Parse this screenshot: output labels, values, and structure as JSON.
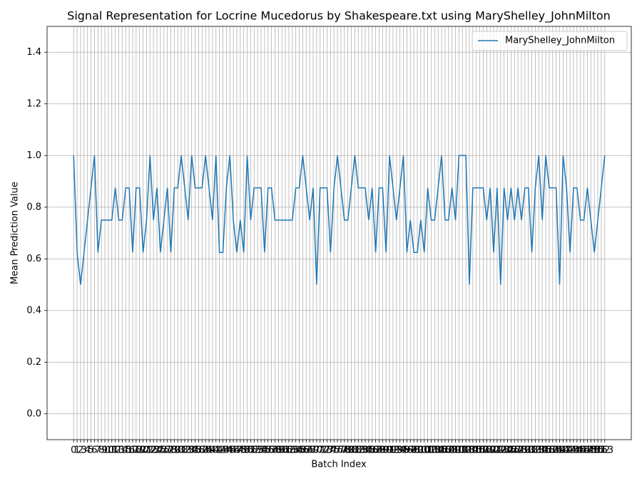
{
  "chart_data": {
    "type": "line",
    "title": "Signal Representation for Locrine Mucedorus by Shakespeare.txt using MaryShelley_JohnMilton",
    "x_label": "Batch Index",
    "y_label": "Mean Prediction Value",
    "x": [
      0,
      1,
      2,
      3,
      4,
      5,
      6,
      7,
      8,
      9,
      10,
      11,
      12,
      13,
      14,
      15,
      16,
      17,
      18,
      19,
      20,
      21,
      22,
      23,
      24,
      25,
      26,
      27,
      28,
      29,
      30,
      31,
      32,
      33,
      34,
      35,
      36,
      37,
      38,
      39,
      40,
      41,
      42,
      43,
      44,
      45,
      46,
      47,
      48,
      49,
      50,
      51,
      52,
      53,
      54,
      55,
      56,
      57,
      58,
      59,
      60,
      61,
      62,
      63,
      64,
      65,
      66,
      67,
      68,
      69,
      70,
      71,
      72,
      73,
      74,
      75,
      76,
      77,
      78,
      79,
      80,
      81,
      82,
      83,
      84,
      85,
      86,
      87,
      88,
      89,
      90,
      91,
      92,
      93,
      94,
      95,
      96,
      97,
      98,
      99,
      100,
      101,
      102,
      103,
      104,
      105,
      106,
      107,
      108,
      109,
      110,
      111,
      112,
      113,
      114,
      115,
      116,
      117,
      118,
      119,
      120,
      121,
      122,
      123,
      124,
      125,
      126,
      127,
      128,
      129,
      130,
      131,
      132,
      133,
      134,
      135,
      136,
      137,
      138,
      139,
      140,
      141,
      142,
      143,
      144,
      145,
      146,
      147,
      148,
      149,
      150,
      151,
      152,
      153
    ],
    "series": [
      {
        "name": "MaryShelley_JohnMilton",
        "color": "#1f77b4",
        "values": [
          1,
          0.625,
          0.5,
          0.625,
          0.75,
          0.875,
          1,
          0.625,
          0.75,
          0.75,
          0.75,
          0.75,
          0.875,
          0.75,
          0.75,
          0.875,
          0.875,
          0.625,
          0.875,
          0.875,
          0.625,
          0.75,
          1,
          0.75,
          0.875,
          0.625,
          0.75,
          0.875,
          0.625,
          0.875,
          0.875,
          1,
          0.875,
          0.75,
          1,
          0.875,
          0.875,
          0.875,
          1,
          0.875,
          0.75,
          1,
          0.625,
          0.625,
          0.875,
          1,
          0.75,
          0.625,
          0.75,
          0.625,
          1,
          0.75,
          0.875,
          0.875,
          0.875,
          0.625,
          0.875,
          0.875,
          0.75,
          0.75,
          0.75,
          0.75,
          0.75,
          0.75,
          0.875,
          0.875,
          1,
          0.875,
          0.75,
          0.875,
          0.5,
          0.875,
          0.875,
          0.875,
          0.625,
          0.875,
          1,
          0.875,
          0.75,
          0.75,
          0.875,
          1,
          0.875,
          0.875,
          0.875,
          0.75,
          0.875,
          0.625,
          0.875,
          0.875,
          0.625,
          1,
          0.875,
          0.75,
          0.875,
          1,
          0.625,
          0.75,
          0.625,
          0.625,
          0.75,
          0.625,
          0.875,
          0.75,
          0.75,
          0.875,
          1,
          0.75,
          0.75,
          0.875,
          0.75,
          1,
          1,
          1,
          0.5,
          0.875,
          0.875,
          0.875,
          0.875,
          0.75,
          0.875,
          0.625,
          0.875,
          0.5,
          0.875,
          0.75,
          0.875,
          0.75,
          0.875,
          0.75,
          0.875,
          0.875,
          0.625,
          0.875,
          1,
          0.75,
          1,
          0.875,
          0.875,
          0.875,
          0.5,
          1,
          0.875,
          0.625,
          0.875,
          0.875,
          0.75,
          0.75,
          0.875,
          0.75,
          0.625,
          0.75,
          0.875,
          1
        ]
      }
    ],
    "xlim": [
      -7.65,
      160.65
    ],
    "xticks": [
      0,
      1,
      2,
      3,
      4,
      5,
      6,
      7,
      8,
      9,
      10,
      11,
      12,
      13,
      14,
      15,
      16,
      17,
      18,
      19,
      20,
      21,
      22,
      23,
      24,
      25,
      26,
      27,
      28,
      29,
      30,
      31,
      32,
      33,
      34,
      35,
      36,
      37,
      38,
      39,
      40,
      41,
      42,
      43,
      44,
      45,
      46,
      47,
      48,
      49,
      50,
      51,
      52,
      53,
      54,
      55,
      56,
      57,
      58,
      59,
      60,
      61,
      62,
      63,
      64,
      65,
      66,
      67,
      68,
      69,
      70,
      71,
      72,
      73,
      74,
      75,
      76,
      77,
      78,
      79,
      80,
      81,
      82,
      83,
      84,
      85,
      86,
      87,
      88,
      89,
      90,
      91,
      92,
      93,
      94,
      95,
      96,
      97,
      98,
      99,
      100,
      101,
      102,
      103,
      104,
      105,
      106,
      107,
      108,
      109,
      110,
      111,
      112,
      113,
      114,
      115,
      116,
      117,
      118,
      119,
      120,
      121,
      122,
      123,
      124,
      125,
      126,
      127,
      128,
      129,
      130,
      131,
      132,
      133,
      134,
      135,
      136,
      137,
      138,
      139,
      140,
      141,
      142,
      143,
      144,
      145,
      146,
      147,
      148,
      149,
      150,
      151,
      152,
      153
    ],
    "ylim": [
      -0.1,
      1.5
    ],
    "yticks": [
      {
        "value": 0,
        "label": "0.0"
      },
      {
        "value": 0.2,
        "label": "0.2"
      },
      {
        "value": 0.4,
        "label": "0.4"
      },
      {
        "value": 0.6,
        "label": "0.6"
      },
      {
        "value": 0.8,
        "label": "0.8"
      },
      {
        "value": 1,
        "label": "1.0"
      },
      {
        "value": 1.2,
        "label": "1.2"
      },
      {
        "value": 1.4,
        "label": "1.4"
      }
    ],
    "grid": true,
    "legend": "upper right"
  }
}
